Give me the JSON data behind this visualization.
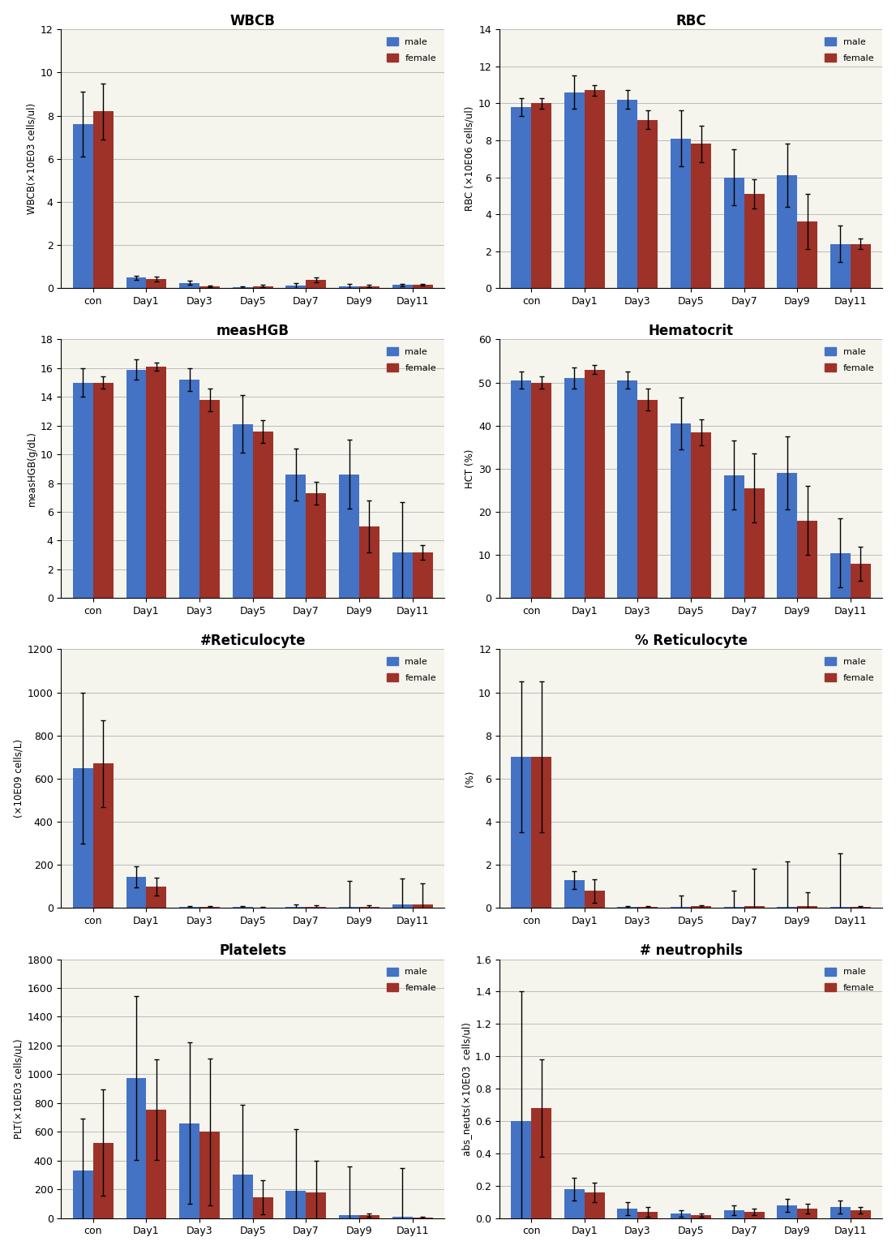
{
  "categories": [
    "con",
    "Day1",
    "Day3",
    "Day5",
    "Day7",
    "Day9",
    "Day11"
  ],
  "male_color": "#4472C4",
  "female_color": "#9E3228",
  "bg_color": "#F2F2E8",
  "plots": [
    {
      "title": "WBCB",
      "ylabel": "WBCB(×10E03 cells/ul)",
      "ylim": [
        0,
        12
      ],
      "yticks": [
        0,
        2,
        4,
        6,
        8,
        10,
        12
      ],
      "male_vals": [
        7.6,
        0.48,
        0.25,
        0.05,
        0.12,
        0.1,
        0.15
      ],
      "female_vals": [
        8.2,
        0.42,
        0.09,
        0.1,
        0.38,
        0.1,
        0.16
      ],
      "male_err": [
        1.5,
        0.1,
        0.1,
        0.05,
        0.12,
        0.1,
        0.05
      ],
      "female_err": [
        1.3,
        0.1,
        0.05,
        0.05,
        0.1,
        0.05,
        0.05
      ]
    },
    {
      "title": "RBC",
      "ylabel": "RBC (×10E06 cells/ul)",
      "ylim": [
        0,
        14
      ],
      "yticks": [
        0,
        2,
        4,
        6,
        8,
        10,
        12,
        14
      ],
      "male_vals": [
        9.8,
        10.6,
        10.2,
        8.1,
        6.0,
        6.1,
        2.4
      ],
      "female_vals": [
        10.0,
        10.7,
        9.1,
        7.8,
        5.1,
        3.6,
        2.4
      ],
      "male_err": [
        0.5,
        0.9,
        0.5,
        1.5,
        1.5,
        1.7,
        1.0
      ],
      "female_err": [
        0.3,
        0.3,
        0.5,
        1.0,
        0.8,
        1.5,
        0.3
      ]
    },
    {
      "title": "measHGB",
      "ylabel": "measHGB(g/dL)",
      "ylim": [
        0,
        18
      ],
      "yticks": [
        0,
        2,
        4,
        6,
        8,
        10,
        12,
        14,
        16,
        18
      ],
      "male_vals": [
        15.0,
        15.9,
        15.2,
        12.1,
        8.6,
        8.6,
        3.2
      ],
      "female_vals": [
        15.0,
        16.1,
        13.8,
        11.6,
        7.3,
        5.0,
        3.2
      ],
      "male_err": [
        1.0,
        0.7,
        0.8,
        2.0,
        1.8,
        2.4,
        3.5
      ],
      "female_err": [
        0.4,
        0.3,
        0.8,
        0.8,
        0.8,
        1.8,
        0.5
      ]
    },
    {
      "title": "Hematocrit",
      "ylabel": "HCT (%)",
      "ylim": [
        0,
        60
      ],
      "yticks": [
        0,
        10,
        20,
        30,
        40,
        50,
        60
      ],
      "male_vals": [
        50.5,
        51.0,
        50.5,
        40.5,
        28.5,
        29.0,
        10.5
      ],
      "female_vals": [
        50.0,
        53.0,
        46.0,
        38.5,
        25.5,
        18.0,
        8.0
      ],
      "male_err": [
        2.0,
        2.5,
        2.0,
        6.0,
        8.0,
        8.5,
        8.0
      ],
      "female_err": [
        1.5,
        1.0,
        2.5,
        3.0,
        8.0,
        8.0,
        4.0
      ]
    },
    {
      "title": "#Reticulocyte",
      "ylabel": "(×10E09 cells/L)",
      "ylim": [
        0,
        1200
      ],
      "yticks": [
        0,
        200,
        400,
        600,
        800,
        1000,
        1200
      ],
      "male_vals": [
        650,
        145,
        5,
        5,
        5,
        5,
        18
      ],
      "female_vals": [
        670,
        100,
        5,
        3,
        5,
        5,
        15
      ],
      "male_err": [
        350,
        50,
        5,
        5,
        10,
        120,
        120
      ],
      "female_err": [
        200,
        40,
        5,
        3,
        8,
        8,
        100
      ]
    },
    {
      "title": "% Reticulocyte",
      "ylabel": "(%)",
      "ylim": [
        0,
        12
      ],
      "yticks": [
        0,
        2,
        4,
        6,
        8,
        10,
        12
      ],
      "male_vals": [
        7.0,
        1.3,
        0.05,
        0.05,
        0.05,
        0.05,
        0.05
      ],
      "female_vals": [
        7.0,
        0.8,
        0.05,
        0.08,
        0.08,
        0.08,
        0.05
      ],
      "male_err": [
        3.5,
        0.4,
        0.05,
        0.55,
        0.75,
        2.1,
        2.5
      ],
      "female_err": [
        3.5,
        0.55,
        0.05,
        0.05,
        1.75,
        0.65,
        0.05
      ]
    },
    {
      "title": "Platelets",
      "ylabel": "PLT(×10E03 cells/uL)",
      "ylim": [
        0,
        1800
      ],
      "yticks": [
        0,
        200,
        400,
        600,
        800,
        1000,
        1200,
        1400,
        1600,
        1800
      ],
      "male_vals": [
        330,
        975,
        660,
        305,
        190,
        20,
        10
      ],
      "female_vals": [
        525,
        755,
        600,
        145,
        180,
        20,
        5
      ],
      "male_err": [
        360,
        570,
        560,
        480,
        430,
        340,
        340
      ],
      "female_err": [
        370,
        350,
        510,
        120,
        220,
        10,
        5
      ]
    },
    {
      "title": "# neutrophils",
      "ylabel": "abs_neuts(×10E03  cells/ul)",
      "ylim": [
        0.0,
        1.6
      ],
      "yticks": [
        0.0,
        0.2,
        0.4,
        0.6,
        0.8,
        1.0,
        1.2,
        1.4,
        1.6
      ],
      "male_vals": [
        0.6,
        0.18,
        0.06,
        0.03,
        0.05,
        0.08,
        0.07
      ],
      "female_vals": [
        0.68,
        0.16,
        0.04,
        0.02,
        0.04,
        0.06,
        0.05
      ],
      "male_err": [
        0.8,
        0.07,
        0.04,
        0.02,
        0.03,
        0.04,
        0.04
      ],
      "female_err": [
        0.3,
        0.06,
        0.03,
        0.01,
        0.02,
        0.03,
        0.02
      ]
    }
  ]
}
